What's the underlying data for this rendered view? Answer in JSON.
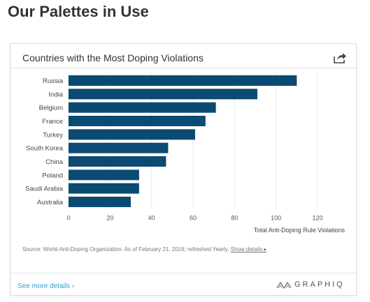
{
  "page": {
    "heading": "Our Palettes in Use"
  },
  "card": {
    "title": "Countries with the Most Doping Violations",
    "share_icon": "share-icon",
    "source_text": "Source: World Anti-Doping Organization. As of February 21, 2016; refreshed Yearly.",
    "show_details": "Show details ▸",
    "see_more": "See more details ›",
    "brand": "GRAPHIQ",
    "brand_icon": "graphiq-logo-icon"
  },
  "chart_data": {
    "type": "bar",
    "orientation": "horizontal",
    "categories": [
      "Russia",
      "India",
      "Belgium",
      "France",
      "Turkey",
      "South Korea",
      "China",
      "Poland",
      "Saudi Arabia",
      "Australia"
    ],
    "values": [
      110,
      91,
      71,
      66,
      61,
      48,
      47,
      34,
      34,
      30
    ],
    "xlabel": "Total Anti-Doping Rule Violations",
    "xlim": [
      0,
      120
    ],
    "xticks": [
      0,
      20,
      40,
      60,
      80,
      100,
      120
    ],
    "bar_color": "#0b4a73",
    "grid": true
  }
}
